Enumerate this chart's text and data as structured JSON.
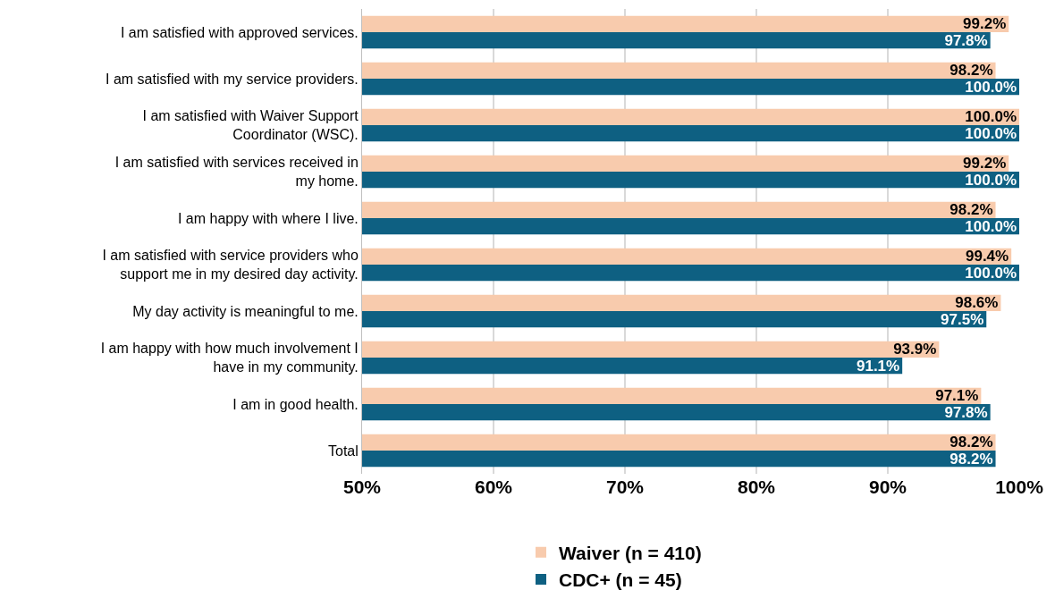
{
  "chart_data": {
    "type": "bar",
    "orientation": "horizontal",
    "categories": [
      "I am satisfied with approved services.",
      "I am satisfied with my service providers.",
      "I am satisfied with Waiver Support Coordinator (WSC).",
      "I am satisfied with services received in my home.",
      "I am happy with where I live.",
      "I am satisfied with service providers who support me in my desired day activity.",
      "My day activity is meaningful to me.",
      "I am happy with how much involvement I have in my community.",
      "I am in good health.",
      "Total"
    ],
    "series": [
      {
        "name": "Waiver (n = 410)",
        "color": "#f8cbad",
        "values": [
          99.2,
          98.2,
          100.0,
          99.2,
          98.2,
          99.4,
          98.6,
          93.9,
          97.1,
          98.2
        ],
        "value_labels": [
          "99.2%",
          "98.2%",
          "100.0%",
          "99.2%",
          "98.2%",
          "99.4%",
          "98.6%",
          "93.9%",
          "97.1%",
          "98.2%"
        ]
      },
      {
        "name": "CDC+ (n = 45)",
        "color": "#0e6082",
        "values": [
          97.8,
          100.0,
          100.0,
          100.0,
          100.0,
          100.0,
          97.5,
          91.1,
          97.8,
          98.2
        ],
        "value_labels": [
          "97.8%",
          "100.0%",
          "100.0%",
          "100.0%",
          "100.0%",
          "100.0%",
          "97.5%",
          "91.1%",
          "97.8%",
          "98.2%"
        ]
      }
    ],
    "xlim": [
      50,
      100
    ],
    "xticks": [
      {
        "value": 50,
        "label": "50%"
      },
      {
        "value": 60,
        "label": "60%"
      },
      {
        "value": 70,
        "label": "70%"
      },
      {
        "value": 80,
        "label": "80%"
      },
      {
        "value": 90,
        "label": "90%"
      },
      {
        "value": 100,
        "label": "100%"
      }
    ],
    "grid": "x",
    "legend": "bottom"
  }
}
